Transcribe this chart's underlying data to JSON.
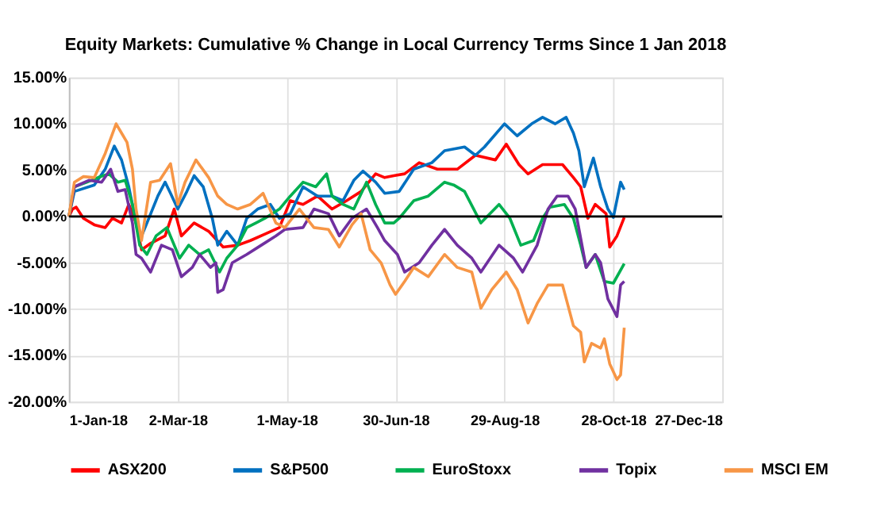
{
  "chart_data": {
    "type": "line",
    "title": "Equity Markets: Cumulative % Change in Local Currency Terms Since 1 Jan 2018",
    "xlim": [
      "2018-01-01",
      "2018-12-27"
    ],
    "xticks": [
      {
        "value": "2018-01-01",
        "label": "1-Jan-18"
      },
      {
        "value": "2018-03-02",
        "label": "2-Mar-18"
      },
      {
        "value": "2018-05-01",
        "label": "1-May-18"
      },
      {
        "value": "2018-06-30",
        "label": "30-Jun-18"
      },
      {
        "value": "2018-08-29",
        "label": "29-Aug-18"
      },
      {
        "value": "2018-10-28",
        "label": "28-Oct-18"
      },
      {
        "value": "2018-12-27",
        "label": "27-Dec-18"
      }
    ],
    "ylim": [
      -20,
      15
    ],
    "yticks": [
      {
        "value": -20,
        "label": "-20.00%"
      },
      {
        "value": -15,
        "label": "-15.00%"
      },
      {
        "value": -10,
        "label": "-10.00%"
      },
      {
        "value": -5,
        "label": "-5.00%"
      },
      {
        "value": 0,
        "label": "0.00%"
      },
      {
        "value": 5,
        "label": "5.00%"
      },
      {
        "value": 10,
        "label": "10.00%"
      },
      {
        "value": 15,
        "label": "15.00%"
      }
    ],
    "grid": true,
    "legend": "bottom",
    "line_style": "solid",
    "marker": "none",
    "ref_lines": [
      {
        "axis": "y",
        "value": 0,
        "color": "#000000"
      }
    ],
    "series": [
      {
        "name": "ASX200",
        "color": "#ff0000",
        "x": [
          "2018-01-01",
          "2018-01-03",
          "2018-01-05",
          "2018-01-09",
          "2018-01-15",
          "2018-01-21",
          "2018-01-25",
          "2018-01-30",
          "2018-02-03",
          "2018-02-07",
          "2018-02-10",
          "2018-02-15",
          "2018-02-23",
          "2018-02-28",
          "2018-03-04",
          "2018-03-11",
          "2018-03-19",
          "2018-03-27",
          "2018-04-04",
          "2018-04-11",
          "2018-04-19",
          "2018-04-27",
          "2018-05-03",
          "2018-05-10",
          "2018-05-18",
          "2018-05-26",
          "2018-06-03",
          "2018-06-11",
          "2018-06-19",
          "2018-06-24",
          "2018-06-29",
          "2018-07-05",
          "2018-07-13",
          "2018-07-23",
          "2018-08-03",
          "2018-08-13",
          "2018-08-24",
          "2018-08-30",
          "2018-09-06",
          "2018-09-11",
          "2018-09-19",
          "2018-09-30",
          "2018-10-06",
          "2018-10-10",
          "2018-10-14",
          "2018-10-18",
          "2018-10-24",
          "2018-10-26",
          "2018-10-30",
          "2018-11-03"
        ],
        "values": [
          0,
          0.8,
          1.0,
          -0.2,
          -0.9,
          -1.2,
          -0.2,
          -0.7,
          1.3,
          -0.7,
          -3.6,
          -2.9,
          -2.1,
          0.8,
          -2.1,
          -0.7,
          -1.6,
          -3.3,
          -3.1,
          -2.6,
          -1.9,
          -1.2,
          1.7,
          1.3,
          2.2,
          0.8,
          1.7,
          2.7,
          4.6,
          4.2,
          4.4,
          4.6,
          5.8,
          5.1,
          5.1,
          6.6,
          6.1,
          7.8,
          5.6,
          4.6,
          5.6,
          5.6,
          4.2,
          3.2,
          -0.2,
          1.3,
          0.3,
          -3.3,
          -2.1,
          -0.1
        ]
      },
      {
        "name": "S&P500",
        "color": "#0070c0",
        "x": [
          "2018-01-01",
          "2018-01-04",
          "2018-01-15",
          "2018-01-21",
          "2018-01-26",
          "2018-01-30",
          "2018-02-03",
          "2018-02-09",
          "2018-02-13",
          "2018-02-19",
          "2018-02-23",
          "2018-02-26",
          "2018-03-02",
          "2018-03-07",
          "2018-03-11",
          "2018-03-16",
          "2018-03-21",
          "2018-03-24",
          "2018-03-29",
          "2018-04-04",
          "2018-04-09",
          "2018-04-15",
          "2018-04-22",
          "2018-04-27",
          "2018-05-03",
          "2018-05-10",
          "2018-05-18",
          "2018-05-26",
          "2018-06-01",
          "2018-06-07",
          "2018-06-12",
          "2018-06-19",
          "2018-06-24",
          "2018-07-02",
          "2018-07-10",
          "2018-07-20",
          "2018-07-27",
          "2018-08-07",
          "2018-08-13",
          "2018-08-18",
          "2018-08-29",
          "2018-09-05",
          "2018-09-13",
          "2018-09-19",
          "2018-09-26",
          "2018-10-02",
          "2018-10-06",
          "2018-10-09",
          "2018-10-12",
          "2018-10-17",
          "2018-10-21",
          "2018-10-25",
          "2018-10-28",
          "2018-11-01",
          "2018-11-03"
        ],
        "values": [
          0,
          2.7,
          3.4,
          5.1,
          7.6,
          6.1,
          3.2,
          -2.6,
          -0.7,
          2.2,
          3.7,
          2.5,
          0.8,
          2.7,
          4.4,
          3.2,
          -0.2,
          -3.1,
          -1.6,
          -3.1,
          -0.2,
          0.8,
          1.3,
          -0.2,
          0.3,
          3.2,
          2.2,
          2.2,
          1.7,
          3.9,
          4.9,
          3.7,
          2.5,
          2.7,
          5.1,
          5.8,
          7.1,
          7.5,
          6.6,
          7.5,
          10.0,
          8.7,
          10.0,
          10.7,
          10.0,
          10.7,
          9.0,
          7.1,
          3.2,
          6.3,
          3.2,
          0.8,
          -0.1,
          3.7,
          2.9
        ]
      },
      {
        "name": "EuroStoxx",
        "color": "#00b050",
        "x": [
          "2018-01-01",
          "2018-01-04",
          "2018-01-11",
          "2018-01-17",
          "2018-01-23",
          "2018-01-28",
          "2018-02-01",
          "2018-02-05",
          "2018-02-09",
          "2018-02-13",
          "2018-02-18",
          "2018-02-24",
          "2018-03-03",
          "2018-03-08",
          "2018-03-14",
          "2018-03-19",
          "2018-03-25",
          "2018-03-29",
          "2018-04-04",
          "2018-04-09",
          "2018-04-14",
          "2018-04-19",
          "2018-04-27",
          "2018-05-03",
          "2018-05-10",
          "2018-05-17",
          "2018-05-23",
          "2018-05-26",
          "2018-06-01",
          "2018-06-07",
          "2018-06-14",
          "2018-06-19",
          "2018-06-24",
          "2018-06-29",
          "2018-07-02",
          "2018-07-10",
          "2018-07-18",
          "2018-07-27",
          "2018-08-01",
          "2018-08-07",
          "2018-08-16",
          "2018-08-26",
          "2018-09-01",
          "2018-09-07",
          "2018-09-14",
          "2018-09-19",
          "2018-09-23",
          "2018-10-01",
          "2018-10-06",
          "2018-10-10",
          "2018-10-13",
          "2018-10-18",
          "2018-10-23",
          "2018-10-28",
          "2018-11-03"
        ],
        "values": [
          0,
          3.2,
          3.7,
          4.2,
          4.6,
          3.7,
          3.9,
          1.3,
          -3.1,
          -4.1,
          -2.1,
          -1.2,
          -4.5,
          -3.1,
          -4.1,
          -3.6,
          -6.0,
          -4.5,
          -3.1,
          -1.2,
          -0.7,
          -0.2,
          0.8,
          2.2,
          3.7,
          3.2,
          4.6,
          2.2,
          1.3,
          0.8,
          3.7,
          1.3,
          -0.7,
          -0.7,
          -0.2,
          1.7,
          2.2,
          3.7,
          3.4,
          2.7,
          -0.7,
          1.3,
          -0.2,
          -3.1,
          -2.6,
          -0.2,
          1.0,
          1.3,
          -0.2,
          -3.1,
          -5.5,
          -4.1,
          -7.0,
          -7.2,
          -5.1
        ]
      },
      {
        "name": "Topix",
        "color": "#7030a0",
        "x": [
          "2018-01-01",
          "2018-01-04",
          "2018-01-12",
          "2018-01-19",
          "2018-01-24",
          "2018-01-28",
          "2018-02-01",
          "2018-02-05",
          "2018-02-07",
          "2018-02-10",
          "2018-02-15",
          "2018-02-21",
          "2018-02-27",
          "2018-03-04",
          "2018-03-10",
          "2018-03-14",
          "2018-03-20",
          "2018-03-23",
          "2018-03-24",
          "2018-03-27",
          "2018-04-01",
          "2018-04-09",
          "2018-04-17",
          "2018-04-25",
          "2018-04-30",
          "2018-05-10",
          "2018-05-16",
          "2018-05-24",
          "2018-05-30",
          "2018-06-06",
          "2018-06-14",
          "2018-06-20",
          "2018-06-24",
          "2018-07-01",
          "2018-07-05",
          "2018-07-13",
          "2018-07-20",
          "2018-07-27",
          "2018-08-03",
          "2018-08-11",
          "2018-08-16",
          "2018-08-26",
          "2018-09-03",
          "2018-09-08",
          "2018-09-16",
          "2018-09-22",
          "2018-09-27",
          "2018-10-03",
          "2018-10-07",
          "2018-10-13",
          "2018-10-18",
          "2018-10-21",
          "2018-10-25",
          "2018-10-30",
          "2018-11-01",
          "2018-11-03"
        ],
        "values": [
          0,
          3.2,
          3.9,
          3.7,
          5.1,
          2.7,
          2.9,
          -0.7,
          -4.1,
          -4.5,
          -6.0,
          -3.1,
          -3.6,
          -6.5,
          -5.5,
          -4.1,
          -5.5,
          -5.0,
          -8.2,
          -7.9,
          -5.0,
          -4.1,
          -3.1,
          -2.1,
          -1.4,
          -1.2,
          0.8,
          0.3,
          -2.1,
          -0.2,
          0.8,
          -1.2,
          -2.6,
          -4.1,
          -6.0,
          -5.0,
          -3.1,
          -1.4,
          -3.1,
          -4.5,
          -6.0,
          -3.1,
          -4.5,
          -6.0,
          -3.1,
          0.8,
          2.2,
          2.2,
          0.8,
          -5.5,
          -4.1,
          -5.0,
          -8.9,
          -10.8,
          -7.4,
          -7.0
        ]
      },
      {
        "name": "MSCI EM",
        "color": "#f79646",
        "x": [
          "2018-01-01",
          "2018-01-04",
          "2018-01-09",
          "2018-01-15",
          "2018-01-21",
          "2018-01-27",
          "2018-01-30",
          "2018-02-02",
          "2018-02-05",
          "2018-02-07",
          "2018-02-10",
          "2018-02-15",
          "2018-02-20",
          "2018-02-26",
          "2018-03-02",
          "2018-03-06",
          "2018-03-12",
          "2018-03-19",
          "2018-03-24",
          "2018-03-29",
          "2018-04-04",
          "2018-04-11",
          "2018-04-18",
          "2018-04-25",
          "2018-04-30",
          "2018-05-08",
          "2018-05-16",
          "2018-05-24",
          "2018-05-30",
          "2018-06-06",
          "2018-06-11",
          "2018-06-16",
          "2018-06-22",
          "2018-06-27",
          "2018-06-30",
          "2018-07-05",
          "2018-07-10",
          "2018-07-18",
          "2018-07-27",
          "2018-08-03",
          "2018-08-11",
          "2018-08-16",
          "2018-08-22",
          "2018-08-30",
          "2018-09-05",
          "2018-09-11",
          "2018-09-16",
          "2018-09-22",
          "2018-09-30",
          "2018-10-06",
          "2018-10-10",
          "2018-10-12",
          "2018-10-16",
          "2018-10-21",
          "2018-10-23",
          "2018-10-26",
          "2018-10-30",
          "2018-11-01",
          "2018-11-03"
        ],
        "values": [
          0,
          3.7,
          4.3,
          4.2,
          6.8,
          10.0,
          9.0,
          8.0,
          5.1,
          0.8,
          -2.6,
          3.7,
          3.9,
          5.7,
          1.3,
          3.7,
          6.1,
          4.2,
          2.2,
          1.3,
          0.8,
          1.3,
          2.5,
          -0.7,
          -1.2,
          0.8,
          -1.2,
          -1.4,
          -3.3,
          -0.9,
          0.3,
          -3.6,
          -5.0,
          -7.4,
          -8.4,
          -7.0,
          -5.5,
          -6.5,
          -4.1,
          -5.5,
          -6.0,
          -9.9,
          -7.9,
          -6.0,
          -7.9,
          -11.5,
          -9.4,
          -7.4,
          -7.4,
          -11.8,
          -12.5,
          -15.7,
          -13.7,
          -14.2,
          -13.2,
          -15.9,
          -17.6,
          -17.1,
          -12.0
        ]
      }
    ]
  }
}
